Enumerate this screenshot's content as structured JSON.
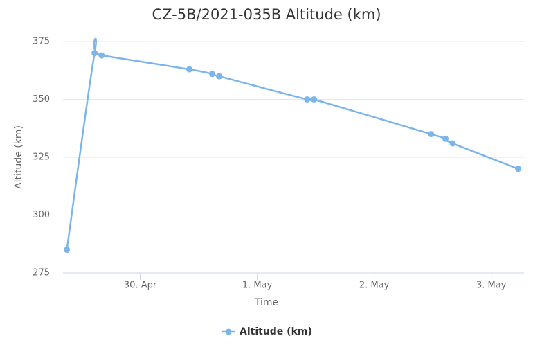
{
  "chart_data": {
    "type": "line",
    "title": "CZ-5B/2021-035B Altitude (km)",
    "x_label": "Time",
    "y_label": "Altitude (km)",
    "x": [
      29.373,
      29.61,
      29.67,
      30.42,
      30.615,
      30.675,
      31.426,
      31.485,
      32.485,
      32.609,
      32.67,
      33.23
    ],
    "series": [
      {
        "name": "Altitude (km)",
        "color": "#7cb5ec",
        "values": [
          285,
          370,
          369,
          363,
          361,
          360,
          350,
          350,
          335,
          333,
          331,
          320
        ]
      }
    ],
    "xlim": [
      29.34,
      33.28
    ],
    "xticks": [
      {
        "value": 30,
        "label": "30. Apr"
      },
      {
        "value": 31,
        "label": "1. May"
      },
      {
        "value": 32,
        "label": "2. May"
      },
      {
        "value": 33,
        "label": "3. May"
      }
    ],
    "ylim": [
      275,
      375
    ],
    "yticks": [
      275,
      300,
      325,
      350,
      375
    ],
    "grid": true,
    "smooth": true,
    "legend": "bottom"
  }
}
